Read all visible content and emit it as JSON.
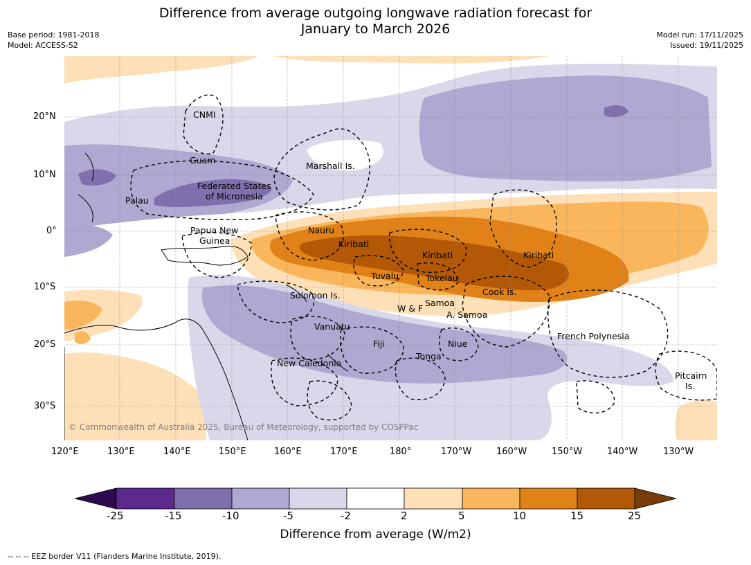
{
  "title_line1": "Difference from average outgoing longwave radiation forecast for",
  "title_line2": "January to March 2026",
  "base_period": "Base period: 1981-2018",
  "model": "Model: ACCESS-S2",
  "model_run": "Model run: 17/11/2025",
  "issued": "Issued: 19/11/2025",
  "copyright": "© Commonwealth of Australia 2025, Bureau of Meteorology, supported by COSPPac",
  "lon_ticks": [
    "120°E",
    "130°E",
    "140°E",
    "150°E",
    "160°E",
    "170°E",
    "180°",
    "170°W",
    "160°W",
    "150°W",
    "140°W",
    "130°W"
  ],
  "lat_ticks": [
    "20°N",
    "10°N",
    "0°",
    "10°S",
    "20°S",
    "30°S"
  ],
  "places": {
    "cnmi": "CNMI",
    "guam": "Guam",
    "marshall": "Marshall Is.",
    "fsm1": "Federated States",
    "fsm2": "of Micronesia",
    "palau": "Palau",
    "png1": "Papua New",
    "png2": "Guinea",
    "nauru": "Nauru",
    "kiribati_w": "Kiribati",
    "kiribati_c": "Kiribati",
    "kiribati_e": "Kiribati",
    "tuvalu": "Tuvalu",
    "tokelau": "Tokelau",
    "cook": "Cook Is.",
    "solomon": "Solomon Is.",
    "wf": "W & F",
    "samoa": "Samoa",
    "asamoa": "A. Samoa",
    "vanuatu": "Vanuatu",
    "fiji": "Fiji",
    "niue": "Niue",
    "tonga": "Tonga",
    "newcal": "New Caledonia",
    "frpoly": "French Polynesia",
    "pitcairn1": "Pitcairn",
    "pitcairn2": "Is."
  },
  "colorbar": {
    "ticks": [
      "-25",
      "-15",
      "-10",
      "-5",
      "-2",
      "2",
      "5",
      "10",
      "15",
      "25"
    ],
    "label": "Difference from average (W/m2)",
    "colors": {
      "under": "#2d0a4e",
      "c_25_15": "#5b2a8c",
      "c_15_10": "#7f70ad",
      "c_10_5": "#afa8d1",
      "c_5_2": "#d8d8ea",
      "c_2_2": "#ffffff",
      "c_2_5": "#fde0b8",
      "c_5_10": "#f9b65c",
      "c_10_15": "#e08217",
      "c_15_25": "#b35806",
      "over": "#7a3c08"
    }
  },
  "footer": "--  --  -- EEZ border V11 (Flanders Marine Institute, 2019)."
}
